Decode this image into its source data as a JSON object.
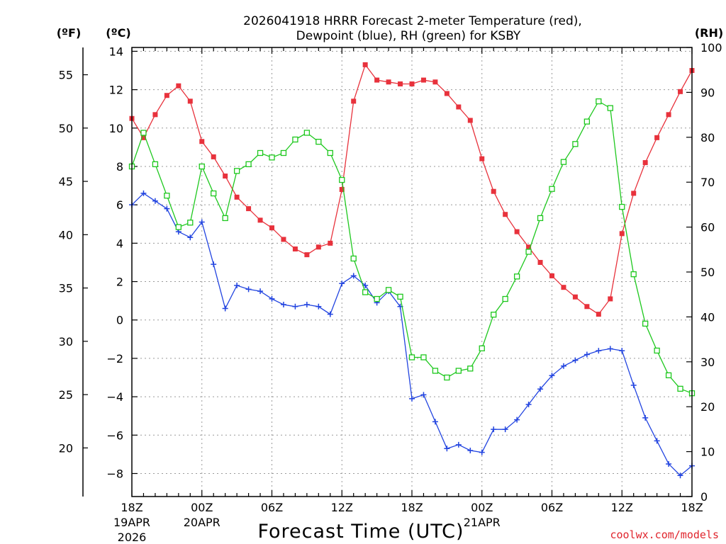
{
  "chart_data": {
    "type": "line",
    "title": "2026041918 HRRR Forecast 2-meter Temperature (red),",
    "title_line2": "Dewpoint (blue), RH (green) for KSBY",
    "xlabel": "Forecast Time (UTC)",
    "credit": "coolwx.com/models",
    "units": {
      "fahrenheit": "(ºF)",
      "celsius": "(ºC)",
      "rh": "(RH)"
    },
    "x_range": [
      0,
      48
    ],
    "celsius_range": [
      -9.2,
      14.2
    ],
    "rh_range": [
      0,
      100
    ],
    "x_ticks": [
      {
        "x": 0,
        "label": "18Z",
        "date": "19APR",
        "year": "2026"
      },
      {
        "x": 6,
        "label": "00Z",
        "date": "20APR",
        "year": ""
      },
      {
        "x": 12,
        "label": "06Z",
        "date": "",
        "year": ""
      },
      {
        "x": 18,
        "label": "12Z",
        "date": "",
        "year": ""
      },
      {
        "x": 24,
        "label": "18Z",
        "date": "",
        "year": ""
      },
      {
        "x": 30,
        "label": "00Z",
        "date": "21APR",
        "year": ""
      },
      {
        "x": 36,
        "label": "06Z",
        "date": "",
        "year": ""
      },
      {
        "x": 42,
        "label": "12Z",
        "date": "",
        "year": ""
      },
      {
        "x": 48,
        "label": "18Z",
        "date": "",
        "year": ""
      }
    ],
    "celsius_ticks": [
      "14",
      "12",
      "10",
      "8",
      "6",
      "4",
      "2",
      "0",
      "−2",
      "−4",
      "−6",
      "−8"
    ],
    "celsius_tick_values": [
      14,
      12,
      10,
      8,
      6,
      4,
      2,
      0,
      -2,
      -4,
      -6,
      -8
    ],
    "fahrenheit_ticks": [
      "55",
      "50",
      "45",
      "40",
      "35",
      "30",
      "25",
      "20"
    ],
    "fahrenheit_tick_values": [
      55,
      50,
      45,
      40,
      35,
      30,
      25,
      20
    ],
    "rh_ticks": [
      "100",
      "90",
      "80",
      "70",
      "60",
      "50",
      "40",
      "30",
      "20",
      "10",
      "0"
    ],
    "rh_tick_values": [
      100,
      90,
      80,
      70,
      60,
      50,
      40,
      30,
      20,
      10,
      0
    ],
    "series": [
      {
        "name": "Temperature",
        "axis": "celsius",
        "color": "#e8323c",
        "marker": "filled-square",
        "values": [
          10.5,
          9.5,
          10.7,
          11.7,
          12.2,
          11.4,
          9.3,
          8.5,
          7.5,
          6.4,
          5.8,
          5.2,
          4.8,
          4.2,
          3.7,
          3.4,
          3.8,
          4.0,
          6.8,
          11.4,
          13.3,
          12.5,
          12.4,
          12.3,
          12.3,
          12.5,
          12.4,
          11.8,
          11.1,
          10.4,
          8.4,
          6.7,
          5.5,
          4.6,
          3.8,
          3.0,
          2.3,
          1.7,
          1.2,
          0.7,
          0.3,
          1.1,
          4.5,
          6.6,
          8.2,
          9.5,
          10.7,
          11.9,
          13.0
        ]
      },
      {
        "name": "Dewpoint",
        "axis": "celsius",
        "color": "#2244e0",
        "marker": "plus",
        "values": [
          6.0,
          6.6,
          6.2,
          5.8,
          4.6,
          4.3,
          5.1,
          2.9,
          0.6,
          1.8,
          1.6,
          1.5,
          1.1,
          0.8,
          0.7,
          0.8,
          0.7,
          0.3,
          1.9,
          2.3,
          1.8,
          0.9,
          1.5,
          0.7,
          -4.1,
          -3.9,
          -5.3,
          -6.7,
          -6.5,
          -6.8,
          -6.9,
          -5.7,
          -5.7,
          -5.2,
          -4.4,
          -3.6,
          -2.9,
          -2.4,
          -2.1,
          -1.8,
          -1.6,
          -1.5,
          -1.6,
          -3.4,
          -5.1,
          -6.3,
          -7.5,
          -8.1,
          -7.6
        ]
      },
      {
        "name": "Relative Humidity",
        "axis": "rh",
        "color": "#1ec81e",
        "marker": "open-square",
        "values": [
          73.5,
          81.0,
          74.0,
          67.0,
          60.0,
          61.0,
          73.5,
          67.5,
          62.0,
          72.5,
          74.0,
          76.5,
          75.5,
          76.5,
          79.5,
          81.0,
          79.0,
          76.5,
          70.5,
          53.0,
          45.5,
          44.0,
          46.0,
          44.5,
          31.0,
          31.0,
          28.0,
          26.5,
          28.0,
          28.5,
          33.0,
          40.5,
          44.0,
          49.0,
          54.5,
          62.0,
          68.5,
          74.5,
          78.5,
          83.5,
          88.0,
          86.5,
          64.5,
          49.5,
          38.5,
          32.5,
          27.0,
          24.0,
          23.0
        ]
      }
    ]
  }
}
